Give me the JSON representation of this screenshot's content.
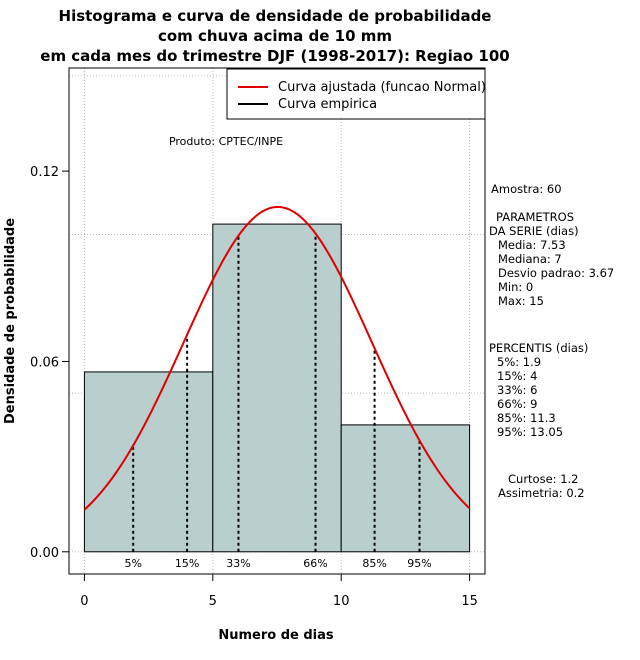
{
  "chart_data": {
    "type": "bar",
    "title": [
      "Histograma e curva de densidade de probabilidade",
      "com chuva acima de 10 mm",
      "em cada mes do trimestre DJF (1998-2017): Regiao 100"
    ],
    "xlabel": "Numero de dias",
    "ylabel": "Densidade de probabilidade",
    "xlim": [
      -0.6,
      15.6
    ],
    "ylim": [
      -0.007,
      0.1525
    ],
    "x_ticks": [
      0,
      5,
      10,
      15
    ],
    "x_tick_labels": [
      "0",
      "5",
      "10",
      "15"
    ],
    "y_ticks": [
      0.0,
      0.06,
      0.12
    ],
    "y_tick_labels": [
      "0.00",
      "0.06",
      "0.12"
    ],
    "grid": true,
    "grid_x": [
      0,
      5,
      10,
      15
    ],
    "grid_y": [
      0.0,
      0.05,
      0.1,
      0.15
    ],
    "bins": [
      {
        "x0": 0,
        "x1": 5,
        "density": 0.0567
      },
      {
        "x0": 5,
        "x1": 10,
        "density": 0.1033
      },
      {
        "x0": 10,
        "x1": 15,
        "density": 0.04
      }
    ],
    "normal_curve": {
      "mean": 7.53,
      "sd": 3.67,
      "x_range": [
        0,
        15
      ],
      "color": "#e00000"
    },
    "percentiles": [
      {
        "label": "5%",
        "x": 1.9
      },
      {
        "label": "15%",
        "x": 4
      },
      {
        "label": "33%",
        "x": 6
      },
      {
        "label": "66%",
        "x": 9
      },
      {
        "label": "85%",
        "x": 11.3
      },
      {
        "label": "95%",
        "x": 13.05
      }
    ],
    "legend": {
      "placement": "top-right",
      "entries": [
        {
          "label": "Curva ajustada (funcao Normal)",
          "color": "#e00000"
        },
        {
          "label": "Curva empirica",
          "color": "#000000"
        }
      ]
    },
    "annotation": "Produto: CPTEC/INPE",
    "bar_color": "#b8cfce",
    "stats": {
      "amostra": "Amostra: 60",
      "parametros_title": "PARAMETROS",
      "parametros_subtitle": "DA SERIE (dias)",
      "parametros": [
        "Media: 7.53",
        "Mediana: 7",
        "Desvio padrao: 3.67",
        "Min: 0",
        "Max: 15"
      ],
      "percentis_title": "PERCENTIS (dias)",
      "percentis": [
        "5%: 1.9",
        "15%: 4",
        "33%: 6",
        "66%: 9",
        "85%: 11.3",
        "95%: 13.05"
      ],
      "curtose": "Curtose: 1.2",
      "assimetria": "Assimetria: 0.2"
    }
  }
}
